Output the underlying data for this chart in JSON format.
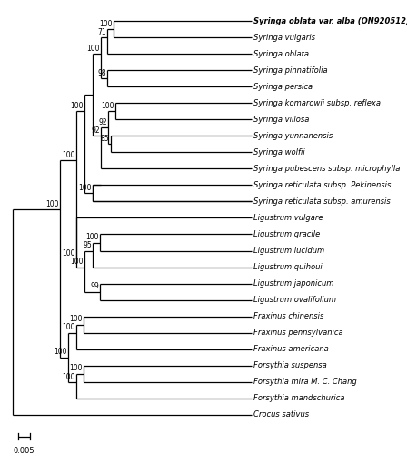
{
  "title": "Syringa oblata var. alba (ON920512)",
  "scale_bar_value": "0.005",
  "taxa": [
    "Syringa oblata var. alba (ON920512)",
    "Syringa vulgaris",
    "Syringa oblata",
    "Syringa pinnatifolia",
    "Syringa persica",
    "Syringa komarowii subsp. reflexa",
    "Syringa villosa",
    "Syringa yunnanensis",
    "Syringa wolfii",
    "Syringa pubescens subsp. microphylla",
    "Syringa reticulata subsp. Pekinensis",
    "Syringa reticulata subsp. amurensis",
    "Ligustrum vulgare",
    "Ligustrum gracile",
    "Ligustrum lucidum",
    "Ligustrum quihoui",
    "Ligustrum japonicum",
    "Ligustrum ovalifolium",
    "Fraxinus chinensis",
    "Fraxinus pennsylvanica",
    "Fraxinus americana",
    "Forsythia suspensa",
    "Forsythia mira M. C. Chang",
    "Forsythia mandschurica",
    "Crocus sativus"
  ],
  "background_color": "#ffffff",
  "line_color": "#000000",
  "text_color": "#000000",
  "bootstrap_color": "#000000"
}
